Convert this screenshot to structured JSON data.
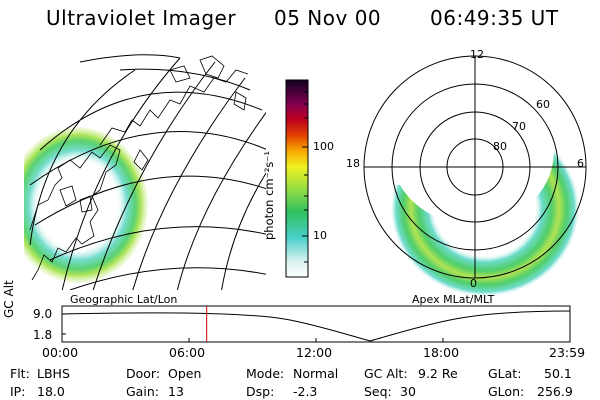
{
  "header": {
    "instrument": "Ultraviolet Imager",
    "date": "05 Nov 00",
    "time": "06:49:35 UT"
  },
  "colorbar": {
    "label": "photon cm⁻²s⁻¹",
    "ticks": [
      "100",
      "10"
    ]
  },
  "geo_map": {
    "caption": "Geographic Lat/Lon"
  },
  "polar_plot": {
    "caption": "Apex MLat/MLT",
    "mlt_labels": [
      "12",
      "18",
      "6",
      "0"
    ],
    "lat_labels": [
      "60",
      "70",
      "80"
    ]
  },
  "gc_plot": {
    "ylabel": "GC Alt",
    "y_ticks": [
      "9.0",
      "1.8"
    ],
    "x_ticks": [
      "00:00",
      "06:00",
      "12:00",
      "18:00",
      "23:59"
    ],
    "current_time_hours": 6.83
  },
  "footer": {
    "flt_label": "Flt:",
    "flt_value": "LBHS",
    "ip_label": "IP:",
    "ip_value": "18.0",
    "door_label": "Door:",
    "door_value": "Open",
    "gain_label": "Gain:",
    "gain_value": "13",
    "mode_label": "Mode:",
    "mode_value": "Normal",
    "dsp_label": "Dsp:",
    "dsp_value": "-2.3",
    "gcalt_label": "GC Alt:",
    "gcalt_value": "9.2 Re",
    "seq_label": "Seq:",
    "seq_value": "30",
    "glat_label": "GLat:",
    "glat_value": "50.1",
    "glon_label": "GLon:",
    "glon_value": "256.9"
  },
  "colors": {
    "line": "#000000",
    "cursor": "#cc0000"
  }
}
